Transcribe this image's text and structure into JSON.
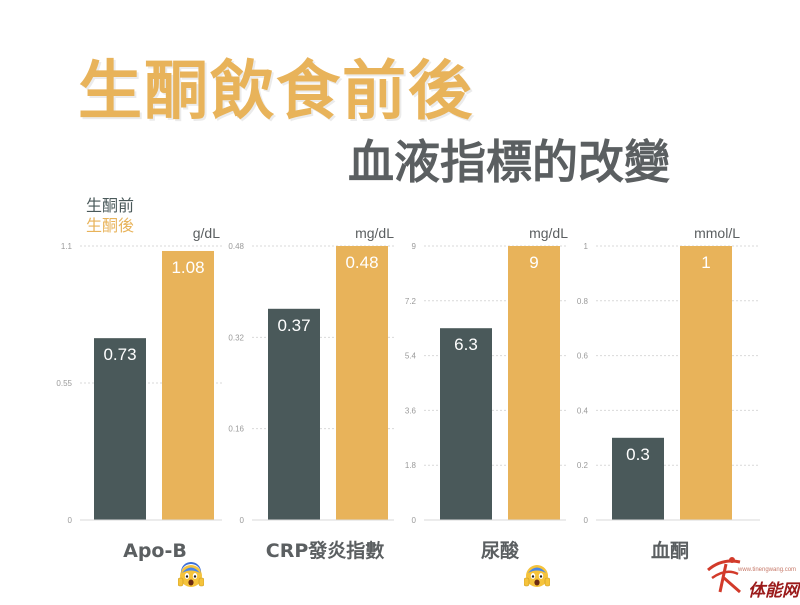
{
  "title": "生酮飲食前後",
  "subtitle": "血液指標的改變",
  "legend": {
    "before": "生酮前",
    "after": "生酮後"
  },
  "colors": {
    "before": "#4a595a",
    "after": "#e8b35a",
    "grid": "#d9d9d9",
    "tick": "#9a9a9a",
    "category": "#5b5f61"
  },
  "chart_data": [
    {
      "type": "bar",
      "category": "Apo-B",
      "unit": "g/dL",
      "series": [
        {
          "name": "生酮前",
          "values": [
            0.73
          ],
          "label": "0.73"
        },
        {
          "name": "生酮後",
          "values": [
            1.08
          ],
          "label": "1.08"
        }
      ],
      "ylim": [
        0,
        1.1
      ],
      "yticks": [
        0,
        0.55,
        1.1
      ],
      "ytick_labels": [
        "0",
        "0.55",
        "1.1"
      ],
      "alert_icon": "fearful-face-icon"
    },
    {
      "type": "bar",
      "category": "CRP發炎指數",
      "unit": "mg/dL",
      "series": [
        {
          "name": "生酮前",
          "values": [
            0.37
          ],
          "label": "0.37"
        },
        {
          "name": "生酮後",
          "values": [
            0.48
          ],
          "label": "0.48"
        }
      ],
      "ylim": [
        0,
        0.48
      ],
      "yticks": [
        0,
        0.16,
        0.32,
        0.48
      ],
      "ytick_labels": [
        "0",
        "0.16",
        "0.32",
        "0.48"
      ]
    },
    {
      "type": "bar",
      "category": "尿酸",
      "unit": "mg/dL",
      "series": [
        {
          "name": "生酮前",
          "values": [
            6.3
          ],
          "label": "6.3"
        },
        {
          "name": "生酮後",
          "values": [
            9
          ],
          "label": "9"
        }
      ],
      "ylim": [
        0,
        9
      ],
      "yticks": [
        0,
        1.8,
        3.6,
        5.4,
        7.2,
        9
      ],
      "ytick_labels": [
        "0",
        "1.8",
        "3.6",
        "5.4",
        "7.2",
        "9"
      ],
      "alert_icon": "fearful-face-icon"
    },
    {
      "type": "bar",
      "category": "血酮",
      "unit": "mmol/L",
      "series": [
        {
          "name": "生酮前",
          "values": [
            0.3
          ],
          "label": "0.3"
        },
        {
          "name": "生酮後",
          "values": [
            1
          ],
          "label": "1"
        }
      ],
      "ylim": [
        0,
        1
      ],
      "yticks": [
        0,
        0.2,
        0.4,
        0.6,
        0.8,
        1
      ],
      "ytick_labels": [
        "0",
        "0.2",
        "0.4",
        "0.6",
        "0.8",
        "1"
      ]
    }
  ],
  "watermark": {
    "url": "www.tinengwang.com",
    "brand": "体能网"
  }
}
